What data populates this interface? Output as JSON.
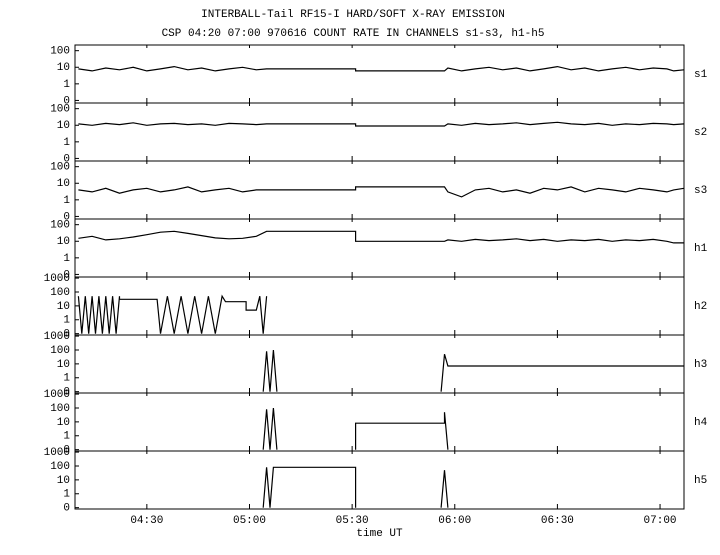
{
  "header": {
    "title": "INTERBALL-Tail RF15-I HARD/SOFT X-RAY EMISSION",
    "subtitle": "CSP 04:20 07:00 970616  COUNT RATE IN CHANNELS s1-s3, h1-h5"
  },
  "chart_data": [
    {
      "type": "line",
      "log_y": true,
      "xlim": [
        249,
        427
      ],
      "ylim": [
        0.07,
        220
      ],
      "xticks": [
        {
          "value": 270,
          "label": "04:30"
        },
        {
          "value": 300,
          "label": "05:00"
        },
        {
          "value": 330,
          "label": "05:30"
        },
        {
          "value": 360,
          "label": "06:00"
        },
        {
          "value": 390,
          "label": "06:30"
        },
        {
          "value": 420,
          "label": "07:00"
        }
      ],
      "yticks": [
        100,
        10,
        1,
        {
          "value": 0.1,
          "label": "0"
        }
      ],
      "x": [
        250,
        254,
        258,
        262,
        266,
        270,
        274,
        278,
        282,
        286,
        290,
        294,
        298,
        302,
        305,
        331,
        331,
        357,
        358,
        362,
        366,
        370,
        374,
        378,
        382,
        386,
        390,
        394,
        398,
        402,
        406,
        410,
        414,
        418,
        422,
        424,
        427
      ],
      "series": [
        {
          "name": "s1",
          "color": "#000000",
          "values": [
            8,
            6,
            9,
            7,
            10,
            6,
            8,
            11,
            7,
            9,
            6,
            8,
            10,
            7,
            8,
            8,
            6,
            6,
            9,
            6,
            8,
            10,
            7,
            9,
            6,
            8,
            11,
            7,
            9,
            6,
            8,
            10,
            7,
            9,
            8,
            6,
            7
          ]
        }
      ]
    },
    {
      "type": "line",
      "log_y": true,
      "xlim": [
        249,
        427
      ],
      "ylim": [
        0.07,
        220
      ],
      "xticks": [
        {
          "value": 270,
          "label": "04:30"
        },
        {
          "value": 300,
          "label": "05:00"
        },
        {
          "value": 330,
          "label": "05:30"
        },
        {
          "value": 360,
          "label": "06:00"
        },
        {
          "value": 390,
          "label": "06:30"
        },
        {
          "value": 420,
          "label": "07:00"
        }
      ],
      "yticks": [
        100,
        10,
        1,
        {
          "value": 0.1,
          "label": "0"
        }
      ],
      "x": [
        250,
        254,
        258,
        262,
        266,
        270,
        274,
        278,
        282,
        286,
        290,
        294,
        298,
        302,
        305,
        331,
        331,
        357,
        358,
        362,
        366,
        370,
        374,
        378,
        382,
        386,
        390,
        394,
        398,
        402,
        406,
        410,
        414,
        418,
        422,
        424,
        427
      ],
      "series": [
        {
          "name": "s2",
          "color": "#000000",
          "values": [
            12,
            10,
            13,
            11,
            14,
            10,
            12,
            13,
            11,
            12,
            10,
            13,
            12,
            11,
            12,
            12,
            9,
            9,
            12,
            10,
            13,
            11,
            12,
            14,
            11,
            13,
            15,
            12,
            11,
            13,
            10,
            12,
            11,
            13,
            12,
            11,
            12
          ]
        }
      ]
    },
    {
      "type": "line",
      "log_y": true,
      "xlim": [
        249,
        427
      ],
      "ylim": [
        0.07,
        220
      ],
      "xticks": [
        {
          "value": 270,
          "label": "04:30"
        },
        {
          "value": 300,
          "label": "05:00"
        },
        {
          "value": 330,
          "label": "05:30"
        },
        {
          "value": 360,
          "label": "06:00"
        },
        {
          "value": 390,
          "label": "06:30"
        },
        {
          "value": 420,
          "label": "07:00"
        }
      ],
      "yticks": [
        100,
        10,
        1,
        {
          "value": 0.1,
          "label": "0"
        }
      ],
      "x": [
        250,
        254,
        258,
        262,
        266,
        270,
        274,
        278,
        282,
        286,
        290,
        294,
        298,
        302,
        305,
        331,
        331,
        357,
        358,
        362,
        366,
        370,
        374,
        378,
        382,
        386,
        390,
        394,
        398,
        402,
        406,
        410,
        414,
        418,
        422,
        424,
        427
      ],
      "series": [
        {
          "name": "s3",
          "color": "#000000",
          "values": [
            4,
            3,
            5,
            2.5,
            4,
            5,
            3,
            4,
            6,
            3,
            4,
            5,
            3,
            4,
            4,
            4,
            6,
            6,
            3,
            1.5,
            4,
            5,
            3,
            4,
            2.5,
            5,
            4,
            6,
            3,
            5,
            4,
            3,
            5,
            4,
            3,
            4,
            5
          ]
        }
      ]
    },
    {
      "type": "line",
      "log_y": true,
      "xlim": [
        249,
        427
      ],
      "ylim": [
        0.07,
        220
      ],
      "xticks": [
        {
          "value": 270,
          "label": "04:30"
        },
        {
          "value": 300,
          "label": "05:00"
        },
        {
          "value": 330,
          "label": "05:30"
        },
        {
          "value": 360,
          "label": "06:00"
        },
        {
          "value": 390,
          "label": "06:30"
        },
        {
          "value": 420,
          "label": "07:00"
        }
      ],
      "yticks": [
        100,
        10,
        1,
        {
          "value": 0.1,
          "label": "0"
        }
      ],
      "x": [
        250,
        254,
        258,
        262,
        266,
        270,
        274,
        278,
        282,
        286,
        290,
        294,
        298,
        302,
        305,
        331,
        331,
        357,
        358,
        362,
        366,
        370,
        374,
        378,
        382,
        386,
        390,
        394,
        398,
        402,
        406,
        410,
        414,
        418,
        422,
        424,
        427
      ],
      "series": [
        {
          "name": "h1",
          "color": "#000000",
          "values": [
            15,
            20,
            12,
            14,
            18,
            25,
            35,
            40,
            30,
            22,
            16,
            14,
            15,
            20,
            40,
            40,
            10,
            10,
            12,
            10,
            13,
            11,
            12,
            14,
            11,
            13,
            10,
            12,
            11,
            13,
            10,
            12,
            11,
            13,
            10,
            8,
            8
          ]
        }
      ]
    },
    {
      "type": "line",
      "log_y": true,
      "xlim": [
        249,
        427
      ],
      "ylim": [
        0.08,
        1200
      ],
      "xticks": [
        {
          "value": 270,
          "label": "04:30"
        },
        {
          "value": 300,
          "label": "05:00"
        },
        {
          "value": 330,
          "label": "05:30"
        },
        {
          "value": 360,
          "label": "06:00"
        },
        {
          "value": 390,
          "label": "06:30"
        },
        {
          "value": 420,
          "label": "07:00"
        }
      ],
      "yticks": [
        1000,
        100,
        10,
        1,
        {
          "value": 0.1,
          "label": "0"
        }
      ],
      "x": [
        250,
        251,
        252,
        253,
        254,
        255,
        256,
        257,
        258,
        259,
        260,
        261,
        262,
        262,
        273,
        274,
        276,
        278,
        280,
        282,
        284,
        286,
        288,
        290,
        292,
        293,
        299,
        299,
        302,
        303,
        304,
        305
      ],
      "series": [
        {
          "name": "h2",
          "color": "#000000",
          "values": [
            50,
            0.1,
            50,
            0.1,
            50,
            0.1,
            50,
            0.1,
            50,
            0.1,
            50,
            0.1,
            50,
            30,
            30,
            0.1,
            50,
            0.1,
            50,
            0.1,
            50,
            0.1,
            50,
            0.1,
            50,
            20,
            20,
            5,
            5,
            50,
            0.1,
            50
          ]
        }
      ]
    },
    {
      "type": "line",
      "log_y": true,
      "xlim": [
        249,
        427
      ],
      "ylim": [
        0.08,
        1200
      ],
      "xticks": [
        {
          "value": 270,
          "label": "04:30"
        },
        {
          "value": 300,
          "label": "05:00"
        },
        {
          "value": 330,
          "label": "05:30"
        },
        {
          "value": 360,
          "label": "06:00"
        },
        {
          "value": 390,
          "label": "06:30"
        },
        {
          "value": 420,
          "label": "07:00"
        }
      ],
      "yticks": [
        1000,
        100,
        10,
        1,
        {
          "value": 0.1,
          "label": "0"
        }
      ],
      "x": [
        304,
        305,
        306,
        307,
        308,
        330,
        356,
        357,
        358,
        427
      ],
      "series": [
        {
          "name": "h3",
          "color": "#000000",
          "values": [
            0.1,
            80,
            0.1,
            100,
            0.1,
            null,
            0.1,
            50,
            7,
            7
          ]
        }
      ]
    },
    {
      "type": "line",
      "log_y": true,
      "xlim": [
        249,
        427
      ],
      "ylim": [
        0.08,
        1200
      ],
      "xticks": [
        {
          "value": 270,
          "label": "04:30"
        },
        {
          "value": 300,
          "label": "05:00"
        },
        {
          "value": 330,
          "label": "05:30"
        },
        {
          "value": 360,
          "label": "06:00"
        },
        {
          "value": 390,
          "label": "06:30"
        },
        {
          "value": 420,
          "label": "07:00"
        }
      ],
      "yticks": [
        1000,
        100,
        10,
        1,
        {
          "value": 0.1,
          "label": "0"
        }
      ],
      "x": [
        304,
        305,
        306,
        307,
        308,
        330,
        331,
        331,
        357,
        357,
        358
      ],
      "series": [
        {
          "name": "h4",
          "color": "#000000",
          "values": [
            0.1,
            80,
            0.1,
            100,
            0.1,
            null,
            0.1,
            8,
            8,
            50,
            0.1
          ]
        }
      ]
    },
    {
      "type": "line",
      "log_y": true,
      "xlim": [
        249,
        427
      ],
      "ylim": [
        0.08,
        1200
      ],
      "xlabel": "time UT",
      "xticks": [
        {
          "value": 270,
          "label": "04:30"
        },
        {
          "value": 300,
          "label": "05:00"
        },
        {
          "value": 330,
          "label": "05:30"
        },
        {
          "value": 360,
          "label": "06:00"
        },
        {
          "value": 390,
          "label": "06:30"
        },
        {
          "value": 420,
          "label": "07:00"
        }
      ],
      "yticks": [
        1000,
        100,
        10,
        1,
        {
          "value": 0.1,
          "label": "0"
        }
      ],
      "x": [
        304,
        305,
        306,
        307,
        331,
        331,
        340,
        356,
        357,
        358
      ],
      "series": [
        {
          "name": "h5",
          "color": "#000000",
          "values": [
            0.1,
            80,
            0.1,
            80,
            80,
            0.1,
            null,
            0.1,
            50,
            0.1
          ]
        }
      ]
    }
  ]
}
